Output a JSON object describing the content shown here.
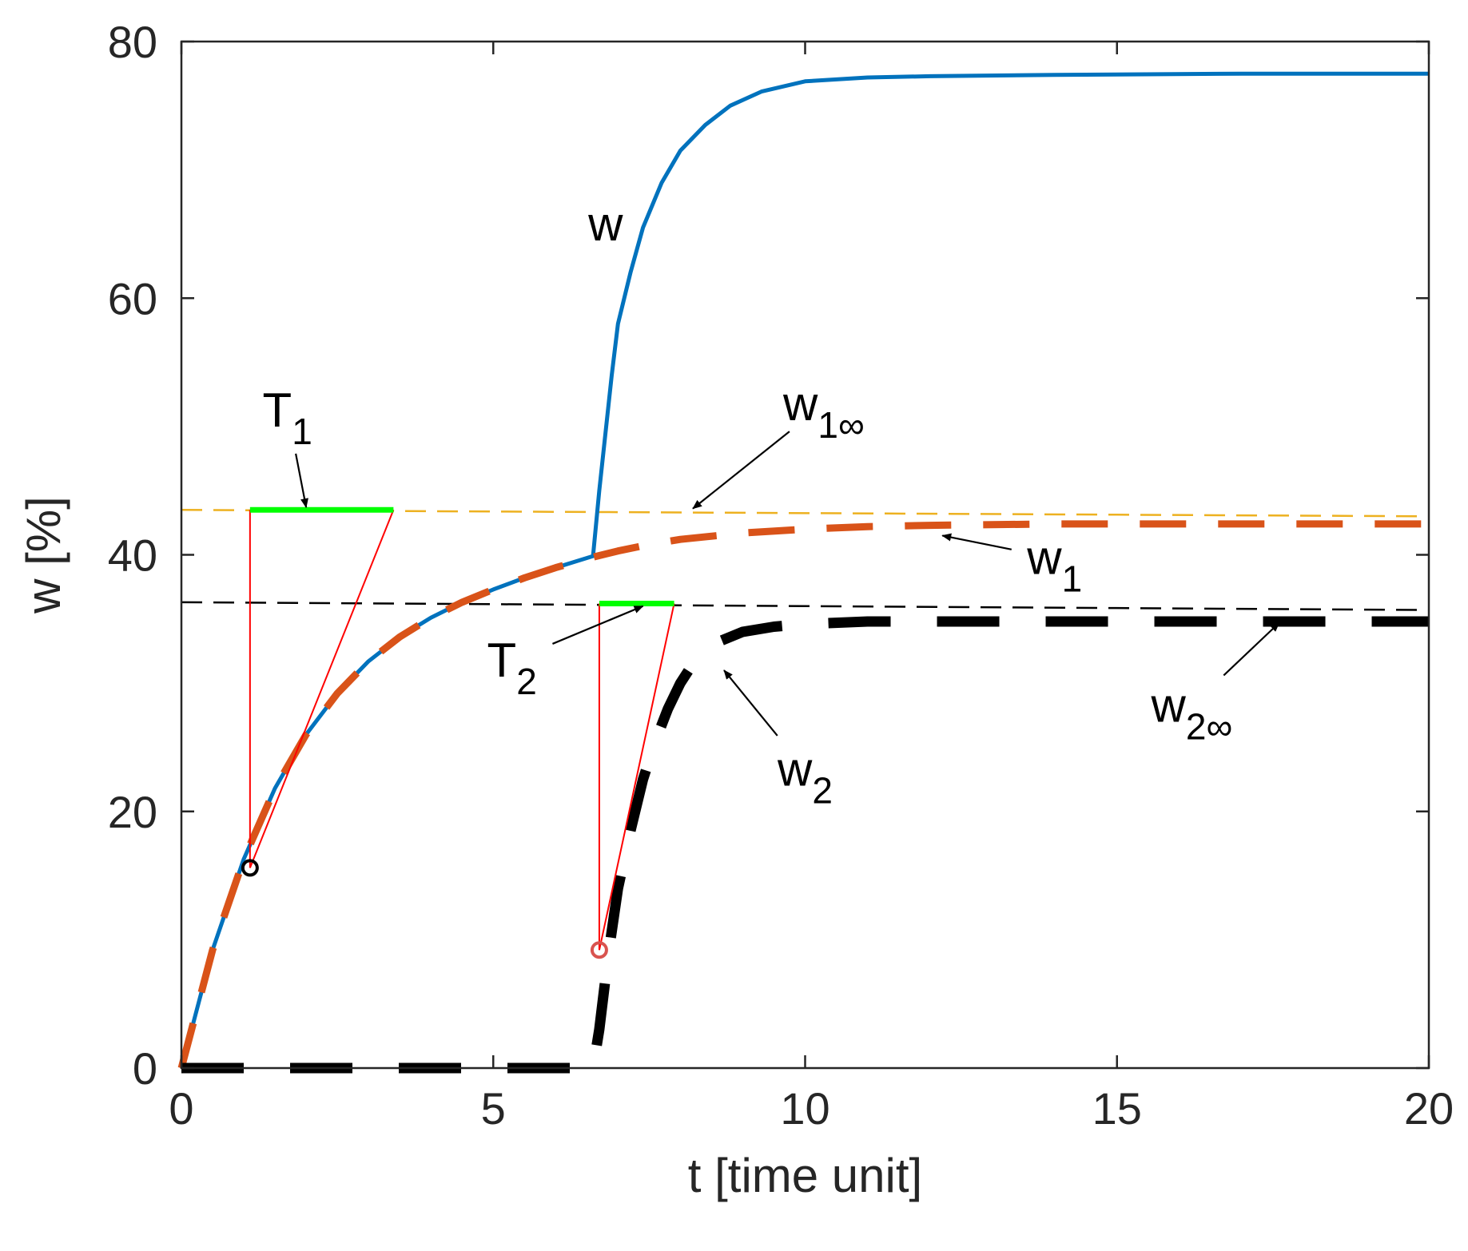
{
  "chart_data": {
    "type": "line",
    "xlabel": "t [time unit]",
    "ylabel": "w [%]",
    "xlim": [
      0,
      20
    ],
    "ylim": [
      0,
      80
    ],
    "xticks": [
      0,
      5,
      10,
      15,
      20
    ],
    "yticks": [
      0,
      20,
      40,
      60,
      80
    ],
    "grid": false,
    "colors": {
      "w": "#0072BD",
      "w1": "#D95319",
      "w2": "#000000",
      "w1_inf": "#EDB120",
      "w2_inf": "#000000",
      "tangent": "#FF0000",
      "time_constant": "#00FF00",
      "axes": "#262626"
    },
    "series": [
      {
        "name": "w",
        "style": "solid",
        "x": [
          0,
          0.5,
          1,
          1.5,
          2,
          2.5,
          3,
          3.5,
          4,
          4.5,
          5,
          5.5,
          6,
          6.6,
          6.7,
          6.8,
          6.9,
          7.0,
          7.2,
          7.4,
          7.7,
          8.0,
          8.4,
          8.8,
          9.3,
          10,
          11,
          12,
          14,
          17,
          20
        ],
        "y": [
          0,
          9.2,
          16.3,
          21.8,
          26.0,
          29.2,
          31.7,
          33.6,
          35.1,
          36.3,
          37.3,
          38.2,
          39.0,
          39.9,
          45.0,
          49.5,
          54.0,
          58.0,
          62.0,
          65.5,
          69.0,
          71.5,
          73.5,
          75.0,
          76.1,
          76.9,
          77.2,
          77.3,
          77.4,
          77.5,
          77.5
        ]
      },
      {
        "name": "w1",
        "style": "dash-thick",
        "x": [
          0,
          0.5,
          1,
          1.5,
          2,
          2.5,
          3,
          3.5,
          4,
          4.5,
          5,
          5.5,
          6,
          6.5,
          7,
          7.5,
          8,
          9,
          10,
          11,
          12,
          14,
          16,
          18,
          20
        ],
        "y": [
          0,
          9.2,
          16.3,
          21.8,
          26.0,
          29.2,
          31.7,
          33.6,
          35.1,
          36.3,
          37.3,
          38.2,
          39.0,
          39.7,
          40.3,
          40.8,
          41.2,
          41.7,
          42.0,
          42.2,
          42.3,
          42.4,
          42.4,
          42.4,
          42.4
        ]
      },
      {
        "name": "w2",
        "style": "dash-thick",
        "x": [
          0,
          6.6,
          6.7,
          6.85,
          7.0,
          7.2,
          7.4,
          7.6,
          7.8,
          8.0,
          8.2,
          8.5,
          9.0,
          9.5,
          10,
          11,
          12,
          14,
          16,
          18,
          20
        ],
        "y": [
          0,
          0,
          3.0,
          9.0,
          14.0,
          18.5,
          22.5,
          25.5,
          28.0,
          30.0,
          31.5,
          33.0,
          34.0,
          34.4,
          34.6,
          34.8,
          34.8,
          34.8,
          34.8,
          34.8,
          34.8
        ]
      },
      {
        "name": "w1_inf",
        "style": "dash-thin",
        "x": [
          0,
          20
        ],
        "y": [
          43.5,
          43.0
        ]
      },
      {
        "name": "w2_inf",
        "style": "dash-thin",
        "x": [
          0,
          20
        ],
        "y": [
          36.3,
          35.7
        ]
      }
    ],
    "tangent_constructions": [
      {
        "name": "T1",
        "point": [
          1.1,
          15.6
        ],
        "level": 43.5,
        "x_end": 3.4
      },
      {
        "name": "T2",
        "point": [
          6.7,
          9.2
        ],
        "level": 36.2,
        "x_end": 7.9
      }
    ],
    "annotations": [
      {
        "id": "w",
        "text": "w",
        "sub": "",
        "at": [
          6.8,
          64.5
        ],
        "arrow_to": null
      },
      {
        "id": "w1inf",
        "text": "w",
        "sub": "1∞",
        "at": [
          10.3,
          50.5
        ],
        "arrow_to": [
          8.2,
          43.6
        ]
      },
      {
        "id": "t1",
        "text": "T",
        "sub": "1",
        "at": [
          1.7,
          50.0
        ],
        "arrow_to": [
          2.0,
          43.7
        ]
      },
      {
        "id": "w1",
        "text": "w",
        "sub": "1",
        "at": [
          14.0,
          38.5
        ],
        "arrow_to": [
          12.2,
          41.5
        ]
      },
      {
        "id": "t2",
        "text": "T",
        "sub": "2",
        "at": [
          5.3,
          30.5
        ],
        "arrow_to": [
          7.4,
          36.0
        ]
      },
      {
        "id": "w2inf",
        "text": "w",
        "sub": "2∞",
        "at": [
          16.2,
          27.0
        ],
        "arrow_to": [
          17.6,
          34.7
        ]
      },
      {
        "id": "w2",
        "text": "w",
        "sub": "2",
        "at": [
          10.0,
          22.0
        ],
        "arrow_to": [
          8.7,
          31.0
        ]
      }
    ]
  }
}
